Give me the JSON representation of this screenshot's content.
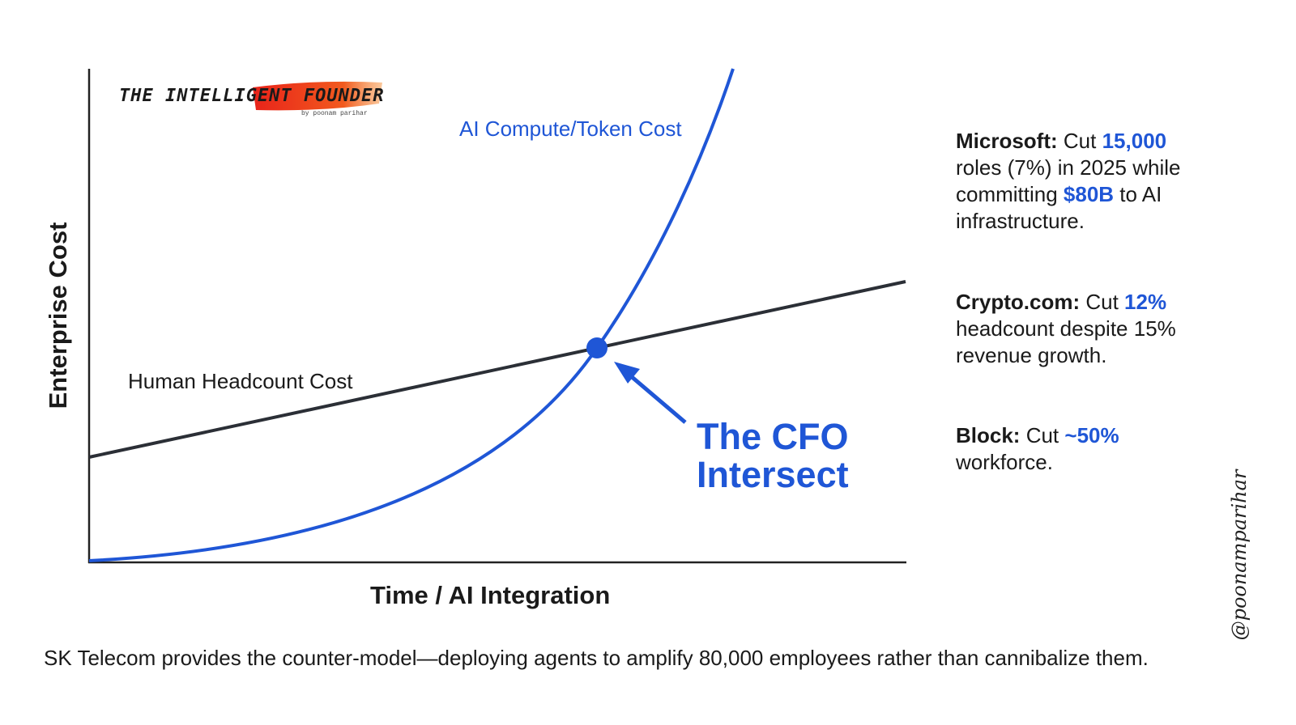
{
  "brand": {
    "name": "THE INTELLIGENT FOUNDER",
    "byline": "by poonam parihar"
  },
  "diagram": {
    "y_axis_label": "Enterprise Cost",
    "x_axis_label": "Time / AI Integration",
    "curve_label": "AI Compute/Token Cost",
    "line_label": "Human Headcount Cost",
    "callout": [
      "The CFO",
      "Intersect"
    ]
  },
  "notes": [
    [
      {
        "text": "Microsoft:",
        "style": "bold"
      },
      {
        "text": " Cut ",
        "style": "plain"
      },
      {
        "text": "15,000",
        "style": "accent"
      },
      {
        "text": " roles (7%) in 2025 while committing ",
        "style": "plain"
      },
      {
        "text": "$80B",
        "style": "accent"
      },
      {
        "text": " to AI infrastructure.",
        "style": "plain"
      }
    ],
    [
      {
        "text": "Crypto.com:",
        "style": "bold"
      },
      {
        "text": " Cut ",
        "style": "plain"
      },
      {
        "text": "12%",
        "style": "accent"
      },
      {
        "text": " headcount despite 15% revenue growth.",
        "style": "plain"
      }
    ],
    [
      {
        "text": "Block:",
        "style": "bold"
      },
      {
        "text": " Cut ",
        "style": "plain"
      },
      {
        "text": "~50%",
        "style": "accent"
      },
      {
        "text": " workforce.",
        "style": "plain"
      }
    ]
  ],
  "footer": "SK Telecom provides the counter-model—deploying agents to amplify 80,000 employees rather than cannibalize them.",
  "watermark": "@poonamparihar"
}
